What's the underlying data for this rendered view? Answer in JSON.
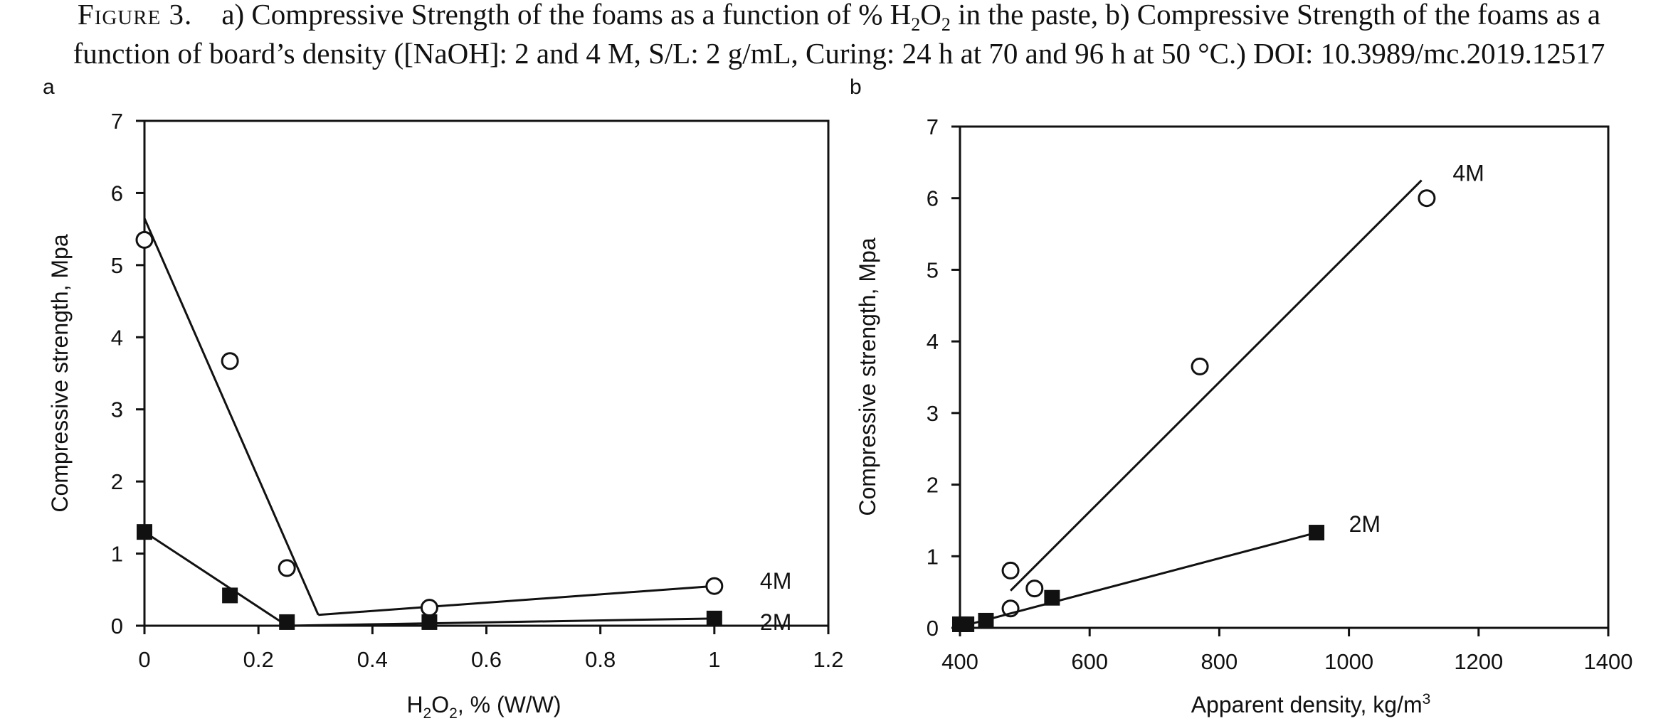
{
  "caption": {
    "figure_label": "Figure 3.",
    "line1_a": "a) Compressive Strength of the foams as a function of % H",
    "line1_sub1": "2",
    "line1_b": "O",
    "line1_sub2": "2",
    "line1_c": " in the paste, b) Compressive Strength of the foams as a",
    "line2": "function of board’s density ([NaOH]: 2 and 4 M, S/L: 2 g/mL, Curing: 24 h at 70 and 96 h at 50 °C.) DOI: 10.3989/mc.2019.12517"
  },
  "colors": {
    "axis": "#111111",
    "marker_fill_2M": "#111111",
    "marker_fill_4M": "#ffffff",
    "line": "#111111"
  },
  "chart_data": [
    {
      "panel": "a",
      "type": "scatter",
      "xlabel_parts": [
        "H",
        "2",
        "O",
        "2",
        ", % (W/W)"
      ],
      "ylabel": "Compressive strength, Mpa",
      "xlim": [
        0,
        1.2
      ],
      "ylim": [
        0,
        7
      ],
      "xticks": [
        0,
        0.2,
        0.4,
        0.6,
        0.8,
        1,
        1.2
      ],
      "xtick_labels": [
        "0",
        "0.2",
        "0.4",
        "0.6",
        "0.8",
        "1",
        "1.2"
      ],
      "yticks": [
        0,
        1,
        2,
        3,
        4,
        5,
        6,
        7
      ],
      "ytick_labels": [
        "0",
        "1",
        "2",
        "3",
        "4",
        "5",
        "6",
        "7"
      ],
      "series": [
        {
          "name": "4M",
          "marker": "open-circle",
          "x": [
            0,
            0.15,
            0.25,
            0.5,
            1
          ],
          "y": [
            5.35,
            3.67,
            0.8,
            0.25,
            0.55
          ],
          "fit_lines": [
            [
              [
                0,
                5.65
              ],
              [
                0.305,
                0.15
              ]
            ],
            [
              [
                0.305,
                0.15
              ],
              [
                1,
                0.55
              ]
            ]
          ]
        },
        {
          "name": "2M",
          "marker": "filled-square",
          "x": [
            0,
            0.15,
            0.25,
            0.5,
            1
          ],
          "y": [
            1.3,
            0.42,
            0.05,
            0.05,
            0.1
          ],
          "fit_lines": [
            [
              [
                0,
                1.3
              ],
              [
                0.25,
                0.0
              ]
            ],
            [
              [
                0.25,
                0.0
              ],
              [
                1,
                0.1
              ]
            ]
          ]
        }
      ],
      "series_labels": [
        {
          "text": "4M",
          "x": 1.08,
          "y": 0.62
        },
        {
          "text": "2M",
          "x": 1.08,
          "y": 0.05
        }
      ]
    },
    {
      "panel": "b",
      "type": "scatter",
      "xlabel": "Apparent density, kg/m",
      "xlabel_sup": "3",
      "ylabel": "Compressive strength, Mpa",
      "xlim": [
        400,
        1400
      ],
      "ylim": [
        0,
        7
      ],
      "xticks": [
        400,
        600,
        800,
        1000,
        1200,
        1400
      ],
      "xtick_labels": [
        "400",
        "600",
        "800",
        "1000",
        "1200",
        "1400"
      ],
      "yticks": [
        0,
        1,
        2,
        3,
        4,
        5,
        6,
        7
      ],
      "ytick_labels": [
        "0",
        "1",
        "2",
        "3",
        "4",
        "5",
        "6",
        "7"
      ],
      "series": [
        {
          "name": "4M",
          "marker": "open-circle",
          "x": [
            478,
            515,
            478,
            770,
            1120
          ],
          "y": [
            0.8,
            0.55,
            0.27,
            3.65,
            6.0
          ],
          "fit_lines": [
            [
              [
                478,
                0.52
              ],
              [
                1112,
                6.25
              ]
            ]
          ]
        },
        {
          "name": "2M",
          "marker": "filled-square",
          "x": [
            400,
            410,
            440,
            542,
            950
          ],
          "y": [
            0.05,
            0.05,
            0.1,
            0.42,
            1.33
          ],
          "fit_lines": [
            [
              [
                402,
                0.02
              ],
              [
                950,
                1.33
              ]
            ]
          ]
        }
      ],
      "series_labels": [
        {
          "text": "4M",
          "x": 1160,
          "y": 6.35
        },
        {
          "text": "2M",
          "x": 1000,
          "y": 1.45
        }
      ]
    }
  ]
}
